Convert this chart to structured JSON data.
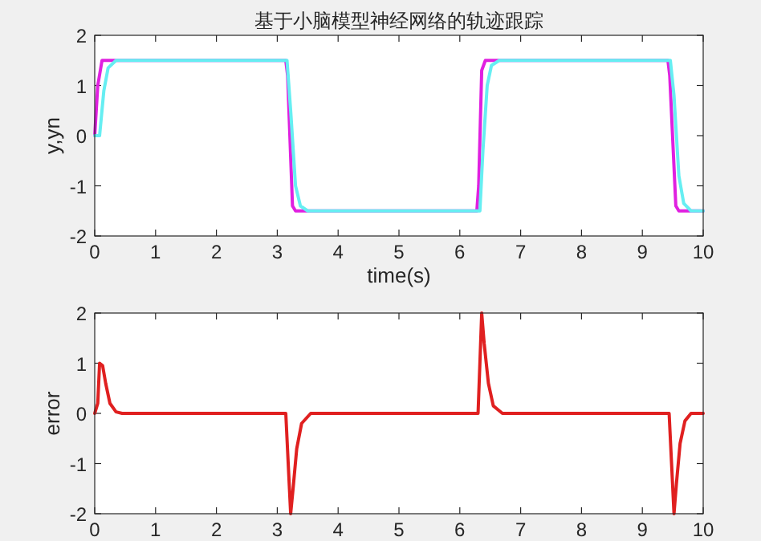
{
  "chart_data": [
    {
      "type": "line",
      "title": "基于小脑模型神经网络的轨迹跟踪",
      "xlabel": "time(s)",
      "ylabel": "y,yn",
      "xlim": [
        0,
        10
      ],
      "ylim": [
        -2,
        2
      ],
      "xticks": [
        0,
        1,
        2,
        3,
        4,
        5,
        6,
        7,
        8,
        9,
        10
      ],
      "yticks": [
        -2,
        -1,
        0,
        1,
        2
      ],
      "grid": false,
      "marker": "none",
      "line_style": "solid",
      "series": [
        {
          "color": "#e020e0",
          "x": [
            0,
            0.05,
            0.12,
            3.14,
            3.17,
            3.25,
            3.3,
            6.28,
            6.31,
            6.36,
            6.42,
            9.42,
            9.45,
            9.55,
            9.6,
            10
          ],
          "values": [
            0,
            1.0,
            1.5,
            1.5,
            1.2,
            -1.4,
            -1.5,
            -1.5,
            -1.0,
            1.3,
            1.5,
            1.5,
            1.2,
            -1.4,
            -1.5,
            -1.5
          ]
        },
        {
          "color": "#66eef2",
          "x": [
            0,
            0.08,
            0.15,
            0.22,
            0.35,
            3.16,
            3.22,
            3.3,
            3.38,
            3.5,
            6.33,
            6.38,
            6.45,
            6.52,
            6.65,
            9.46,
            9.52,
            9.6,
            9.68,
            9.8,
            10
          ],
          "values": [
            0,
            0,
            0.9,
            1.35,
            1.5,
            1.5,
            0.5,
            -1.0,
            -1.4,
            -1.5,
            -1.5,
            -0.3,
            1.0,
            1.4,
            1.5,
            1.5,
            0.8,
            -0.8,
            -1.35,
            -1.5,
            -1.5
          ]
        }
      ]
    },
    {
      "type": "line",
      "ylabel": "error",
      "xlim": [
        0,
        10
      ],
      "ylim": [
        -2,
        2
      ],
      "xticks": [
        0,
        1,
        2,
        3,
        4,
        5,
        6,
        7,
        8,
        9,
        10
      ],
      "yticks": [
        -2,
        -1,
        0,
        1,
        2
      ],
      "grid": false,
      "marker": "none",
      "line_style": "solid",
      "series": [
        {
          "color": "#e02020",
          "x": [
            0,
            0.05,
            0.08,
            0.13,
            0.18,
            0.25,
            0.35,
            0.45,
            3.14,
            3.18,
            3.22,
            3.26,
            3.32,
            3.4,
            3.55,
            6.3,
            6.33,
            6.36,
            6.4,
            6.47,
            6.55,
            6.7,
            9.44,
            9.48,
            9.52,
            9.56,
            9.62,
            9.7,
            9.8,
            10
          ],
          "values": [
            0,
            0.2,
            1.0,
            0.95,
            0.6,
            0.2,
            0.03,
            0,
            0,
            -1.0,
            -2.0,
            -1.5,
            -0.7,
            -0.2,
            0,
            0,
            1.0,
            2.0,
            1.4,
            0.6,
            0.15,
            0,
            0,
            -1.0,
            -2.0,
            -1.4,
            -0.6,
            -0.15,
            0,
            0
          ]
        }
      ]
    }
  ]
}
